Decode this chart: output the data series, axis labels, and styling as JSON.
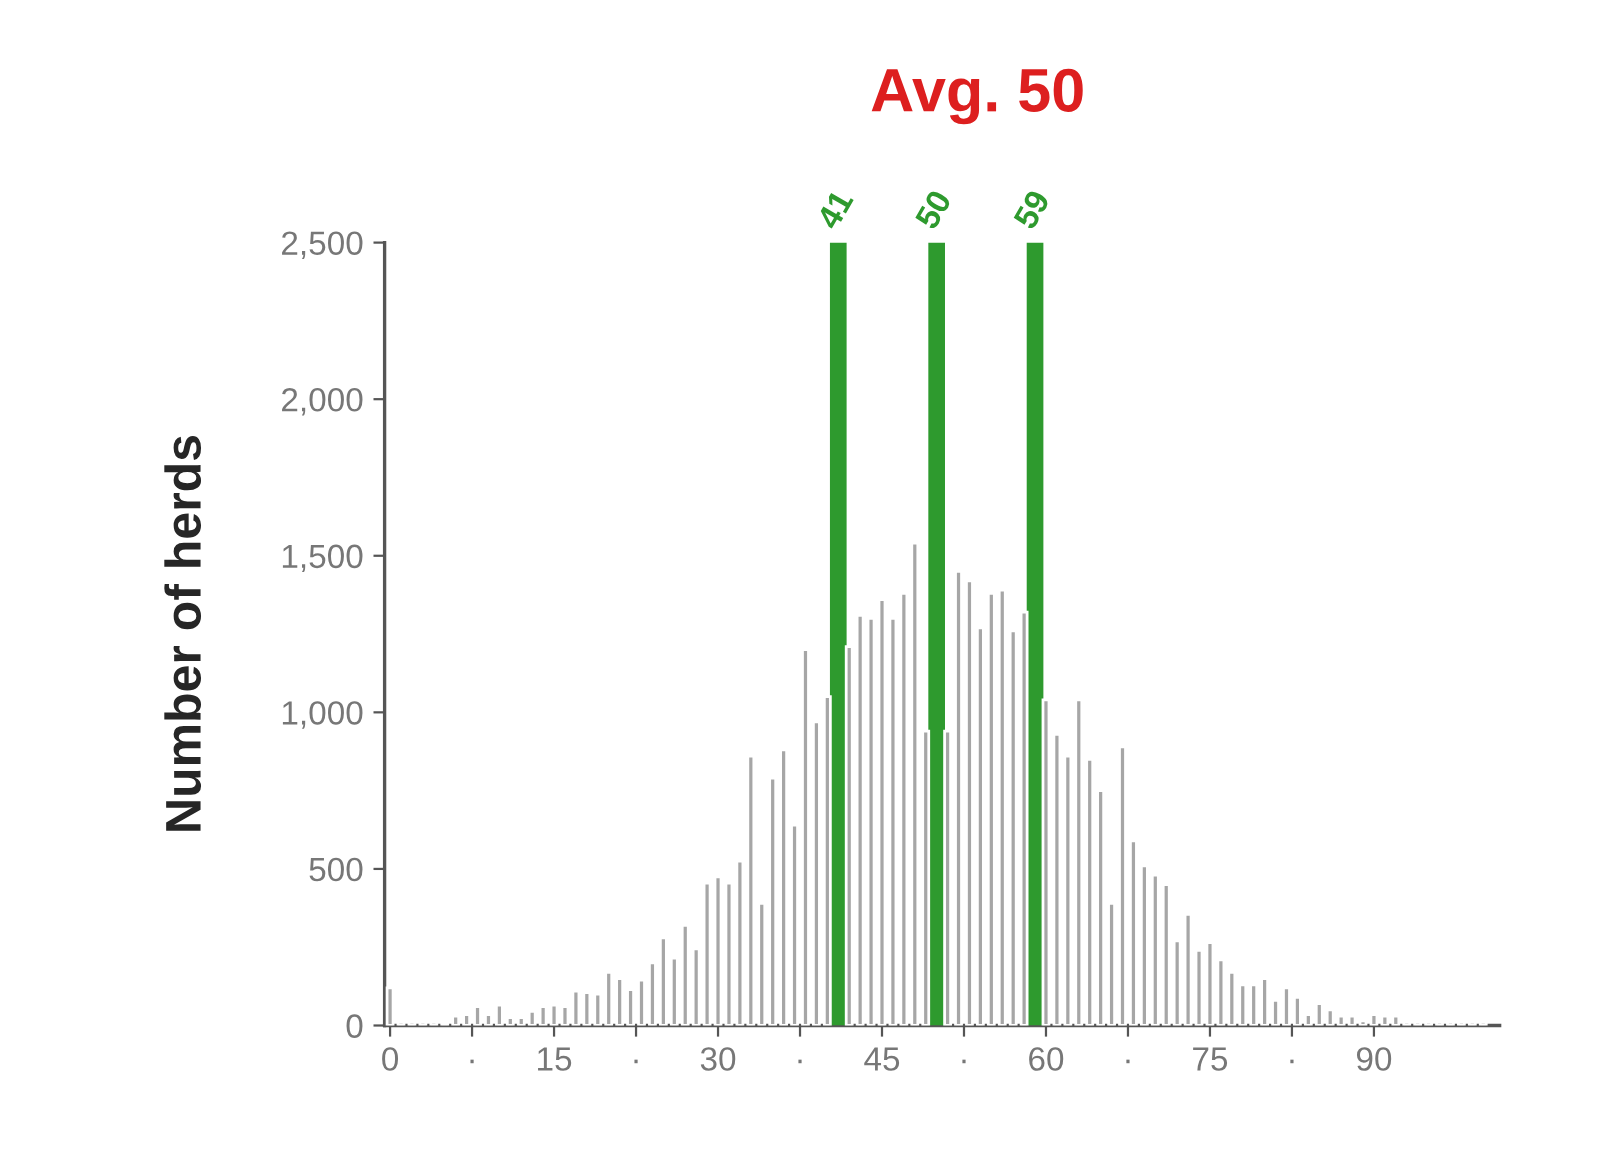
{
  "chart_data": {
    "type": "bar",
    "title": "Avg. 50",
    "ylabel": "Number of herds",
    "x": [
      0,
      1,
      2,
      3,
      4,
      5,
      6,
      7,
      8,
      9,
      10,
      11,
      12,
      13,
      14,
      15,
      16,
      17,
      18,
      19,
      20,
      21,
      22,
      23,
      24,
      25,
      26,
      27,
      28,
      29,
      30,
      31,
      32,
      33,
      34,
      35,
      36,
      37,
      38,
      39,
      40,
      41,
      42,
      43,
      44,
      45,
      46,
      47,
      48,
      49,
      50,
      51,
      52,
      53,
      54,
      55,
      56,
      57,
      58,
      59,
      60,
      61,
      62,
      63,
      64,
      65,
      66,
      67,
      68,
      69,
      70,
      71,
      72,
      73,
      74,
      75,
      76,
      77,
      78,
      79,
      80,
      81,
      82,
      83,
      84,
      85,
      86,
      87,
      88,
      89,
      90,
      91,
      92,
      93,
      94,
      95,
      96,
      97,
      98,
      99,
      100
    ],
    "series": [
      {
        "color": "#a6a6a6",
        "values": [
          120,
          10,
          10,
          10,
          10,
          5,
          30,
          35,
          60,
          35,
          65,
          25,
          25,
          45,
          60,
          65,
          60,
          110,
          105,
          100,
          170,
          150,
          115,
          145,
          200,
          280,
          215,
          320,
          245,
          455,
          475,
          455,
          525,
          860,
          390,
          790,
          880,
          640,
          1200,
          970,
          1050,
          null,
          1210,
          1310,
          1300,
          1360,
          1300,
          1380,
          1540,
          940,
          null,
          940,
          1450,
          1420,
          1270,
          1380,
          1390,
          1260,
          1320,
          null,
          1040,
          930,
          860,
          1040,
          850,
          750,
          390,
          890,
          590,
          510,
          480,
          450,
          270,
          355,
          240,
          265,
          210,
          170,
          130,
          130,
          150,
          80,
          120,
          90,
          35,
          70,
          50,
          30,
          30,
          15,
          35,
          30,
          30,
          10,
          10,
          10,
          10,
          10,
          10,
          10,
          10
        ]
      }
    ],
    "xlim": [
      -0.5,
      101.5
    ],
    "xticks": [
      0,
      {
        "value": 7.5,
        "label": "·"
      },
      15,
      {
        "value": 22.5,
        "label": "·"
      },
      30,
      {
        "value": 37.5,
        "label": "·"
      },
      45,
      {
        "value": 52.5,
        "label": "·"
      },
      60,
      {
        "value": 67.5,
        "label": "·"
      },
      75,
      {
        "value": 82.5,
        "label": "·"
      },
      90
    ],
    "ylim": [
      0,
      2500
    ],
    "yticks": [
      0,
      500,
      {
        "value": 1000,
        "label": "1,000"
      },
      {
        "value": 1500,
        "label": "1,500"
      },
      {
        "value": 2000,
        "label": "2,000"
      },
      {
        "value": 2500,
        "label": "2,500"
      }
    ],
    "ref_lines": [
      {
        "axis": "x",
        "value": 41,
        "label": "41",
        "color": "#2e9a2e"
      },
      {
        "axis": "x",
        "value": 50,
        "label": "50",
        "color": "#2e9a2e"
      },
      {
        "axis": "x",
        "value": 59,
        "label": "59",
        "color": "#2e9a2e"
      }
    ],
    "grid": false,
    "legend": false
  }
}
